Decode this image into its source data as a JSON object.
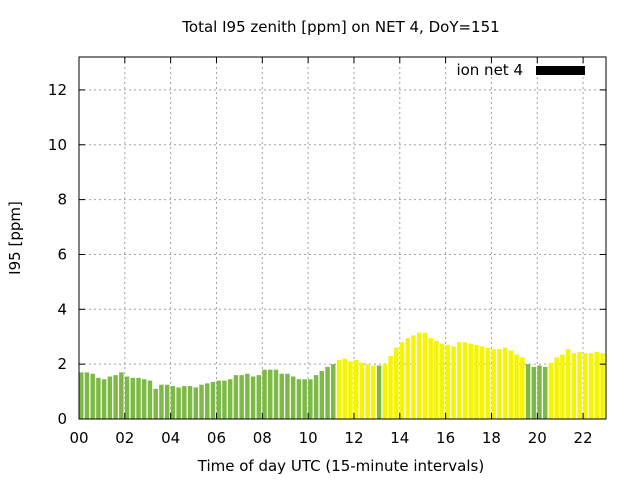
{
  "chart_data": {
    "type": "bar",
    "title": "Total I95 zenith [ppm] on NET 4, DoY=151",
    "xlabel": "Time of day UTC (15-minute intervals)",
    "ylabel": "I95 [ppm]",
    "xlim": [
      0,
      23.0
    ],
    "ylim": [
      0,
      13.2
    ],
    "x_tick_labels": [
      "00",
      "02",
      "04",
      "06",
      "08",
      "10",
      "12",
      "14",
      "16",
      "18",
      "20",
      "22"
    ],
    "x_tick_values": [
      0,
      2,
      4,
      6,
      8,
      10,
      12,
      14,
      16,
      18,
      20,
      22
    ],
    "y_tick_values": [
      0,
      2,
      4,
      6,
      8,
      10,
      12
    ],
    "y_tick_labels": [
      "0",
      "2",
      "4",
      "6",
      "8",
      "10",
      "12"
    ],
    "grid": true,
    "legend": {
      "label": "ion net 4",
      "placement": "top-right",
      "color": "#000000"
    },
    "colors": {
      "green": "#7cba45",
      "yellow": "#f5f500"
    },
    "series": [
      {
        "x": [
          0.0,
          0.25,
          0.5,
          0.75,
          1.0,
          1.25,
          1.5,
          1.75,
          2.0,
          2.25,
          2.5,
          2.75,
          3.0,
          3.25,
          3.5,
          3.75,
          4.0,
          4.25,
          4.5,
          4.75,
          5.0,
          5.25,
          5.5,
          5.75,
          6.0,
          6.25,
          6.5,
          6.75,
          7.0,
          7.25,
          7.5,
          7.75,
          8.0,
          8.25,
          8.5,
          8.75,
          9.0,
          9.25,
          9.5,
          9.75,
          10.0,
          10.25,
          10.5,
          10.75,
          11.0,
          11.25,
          11.5,
          11.75,
          12.0,
          12.25,
          12.5,
          12.75,
          13.0,
          13.25,
          13.5,
          13.75,
          14.0,
          14.25,
          14.5,
          14.75,
          15.0,
          15.25,
          15.5,
          15.75,
          16.0,
          16.25,
          16.5,
          16.75,
          17.0,
          17.25,
          17.5,
          17.75,
          18.0,
          18.25,
          18.5,
          18.75,
          19.0,
          19.25,
          19.5,
          19.75,
          20.0,
          20.25,
          20.5,
          20.75,
          21.0,
          21.25,
          21.5,
          21.75,
          22.0,
          22.25,
          22.5,
          22.75
        ],
        "values": [
          1.7,
          1.7,
          1.65,
          1.5,
          1.45,
          1.55,
          1.6,
          1.7,
          1.55,
          1.5,
          1.5,
          1.45,
          1.4,
          1.1,
          1.25,
          1.25,
          1.2,
          1.15,
          1.2,
          1.2,
          1.15,
          1.25,
          1.3,
          1.35,
          1.4,
          1.4,
          1.45,
          1.6,
          1.6,
          1.65,
          1.55,
          1.6,
          1.8,
          1.8,
          1.8,
          1.65,
          1.65,
          1.55,
          1.45,
          1.45,
          1.45,
          1.6,
          1.75,
          1.9,
          2.0,
          2.15,
          2.2,
          2.1,
          2.15,
          2.05,
          2.0,
          1.95,
          1.95,
          2.0,
          2.3,
          2.6,
          2.8,
          2.95,
          3.05,
          3.15,
          3.15,
          2.95,
          2.85,
          2.75,
          2.7,
          2.65,
          2.8,
          2.8,
          2.75,
          2.7,
          2.65,
          2.6,
          2.55,
          2.55,
          2.6,
          2.5,
          2.35,
          2.25,
          2.0,
          1.9,
          1.95,
          1.9,
          2.05,
          2.25,
          2.35,
          2.55,
          2.4,
          2.45,
          2.4,
          2.4,
          2.45,
          2.4
        ],
        "level": [
          "green",
          "green",
          "green",
          "green",
          "green",
          "green",
          "green",
          "green",
          "green",
          "green",
          "green",
          "green",
          "green",
          "green",
          "green",
          "green",
          "green",
          "green",
          "green",
          "green",
          "green",
          "green",
          "green",
          "green",
          "green",
          "green",
          "green",
          "green",
          "green",
          "green",
          "green",
          "green",
          "green",
          "green",
          "green",
          "green",
          "green",
          "green",
          "green",
          "green",
          "green",
          "green",
          "green",
          "green",
          "green",
          "yellow",
          "yellow",
          "yellow",
          "yellow",
          "yellow",
          "yellow",
          "yellow",
          "green",
          "yellow",
          "yellow",
          "yellow",
          "yellow",
          "yellow",
          "yellow",
          "yellow",
          "yellow",
          "yellow",
          "yellow",
          "yellow",
          "yellow",
          "yellow",
          "yellow",
          "yellow",
          "yellow",
          "yellow",
          "yellow",
          "yellow",
          "yellow",
          "yellow",
          "yellow",
          "yellow",
          "yellow",
          "yellow",
          "green",
          "green",
          "green",
          "green",
          "yellow",
          "yellow",
          "yellow",
          "yellow",
          "yellow",
          "yellow",
          "yellow",
          "yellow",
          "yellow",
          "yellow"
        ]
      }
    ]
  }
}
